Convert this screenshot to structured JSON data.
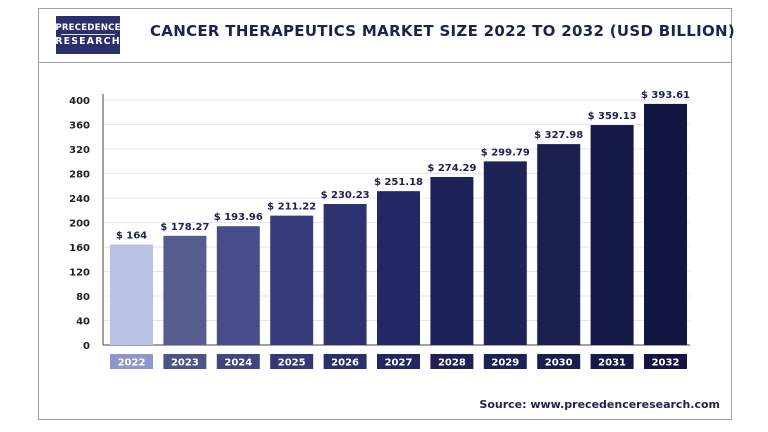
{
  "header": {
    "logo_line1": "PRECEDENCE",
    "logo_line2": "RESEARCH",
    "title": "CANCER THERAPEUTICS MARKET SIZE 2022 TO 2032 (USD BILLION)"
  },
  "footer": {
    "source": "Source: www.precedenceresearch.com"
  },
  "chart_data": {
    "type": "bar",
    "title": "CANCER THERAPEUTICS MARKET SIZE 2022 TO 2032 (USD BILLION)",
    "xlabel": "",
    "ylabel": "",
    "categories": [
      "2022",
      "2023",
      "2024",
      "2025",
      "2026",
      "2027",
      "2028",
      "2029",
      "2030",
      "2031",
      "2032"
    ],
    "values": [
      164,
      178.27,
      193.96,
      211.22,
      230.23,
      251.18,
      274.29,
      299.79,
      327.98,
      359.13,
      393.61
    ],
    "data_labels": [
      "$ 164",
      "$ 178.27",
      "$ 193.96",
      "$ 211.22",
      "$ 230.23",
      "$ 251.18",
      "$ 274.29",
      "$ 299.79",
      "$ 327.98",
      "$ 359.13",
      "$ 393.61"
    ],
    "yticks": [
      0,
      40,
      80,
      120,
      160,
      200,
      240,
      280,
      320,
      360,
      400
    ],
    "ylim": [
      0,
      400
    ],
    "grid": true,
    "legend": "none",
    "bar_colors": [
      "#b9c2e4",
      "#565c8e",
      "#474d88",
      "#373c7c",
      "#2e336f",
      "#222863",
      "#1c2157",
      "#1d2356",
      "#1a1f4e",
      "#151946",
      "#111540"
    ],
    "category_label_colors": [
      "#8d97c9",
      "#4c5385",
      "#3f457f",
      "#343975",
      "#2b3069",
      "#222761",
      "#1c2156",
      "#1c2156",
      "#191e4d",
      "#151946",
      "#121541"
    ]
  }
}
